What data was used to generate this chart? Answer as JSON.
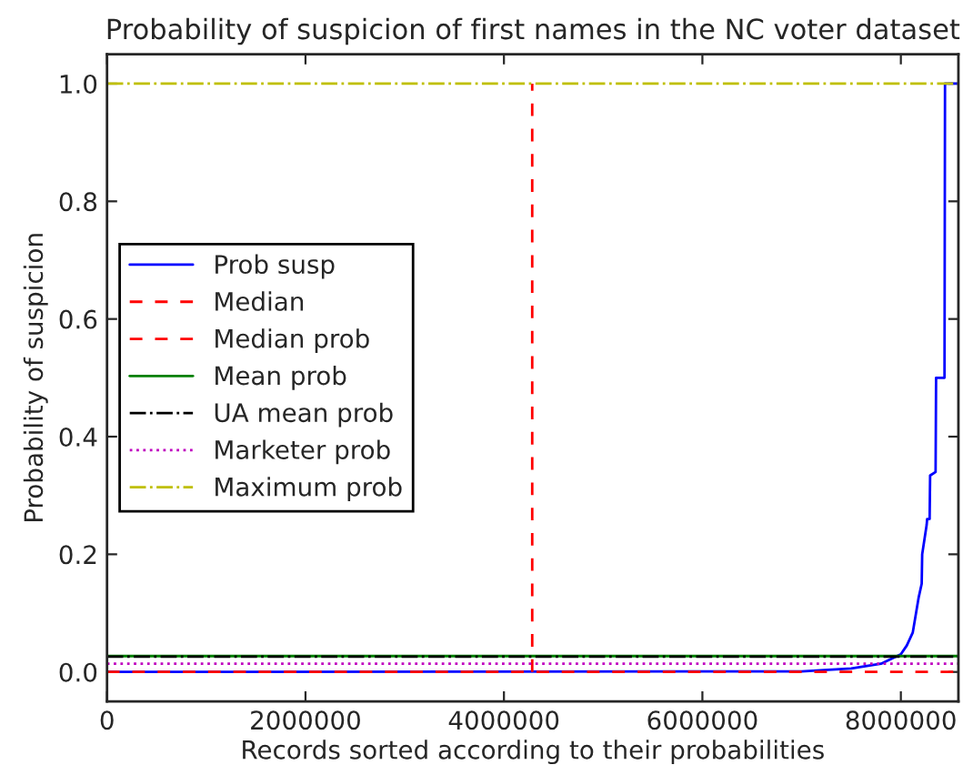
{
  "chart_data": {
    "type": "line",
    "title": "Probability of suspicion of first names in the NC voter dataset",
    "xlabel": "Records sorted according to their probabilities",
    "ylabel": "Probability of suspicion",
    "xlim": [
      0,
      8580000
    ],
    "ylim": [
      -0.05,
      1.05
    ],
    "xticks": [
      0,
      2000000,
      4000000,
      6000000,
      8000000
    ],
    "yticks": [
      {
        "value": 0,
        "label": "0.0"
      },
      {
        "value": 0.2,
        "label": "0.2"
      },
      {
        "value": 0.4,
        "label": "0.4"
      },
      {
        "value": 0.6,
        "label": "0.6"
      },
      {
        "value": 0.8,
        "label": "0.8"
      },
      {
        "value": 1,
        "label": "1.0"
      }
    ],
    "legend": "left",
    "grid": false,
    "series": [
      {
        "name": "Prob susp",
        "color": "#0000ff",
        "line_style": "solid",
        "x": [
          0,
          7000000,
          7500000,
          7800000,
          8000000,
          8060000,
          8120000,
          8180000,
          8210000,
          8215000,
          8260000,
          8265000,
          8290000,
          8295000,
          8350000,
          8355000,
          8440000,
          8445000,
          8580000
        ],
        "values": [
          0,
          0.001,
          0.006,
          0.014,
          0.03,
          0.045,
          0.067,
          0.127,
          0.15,
          0.2,
          0.25,
          0.26,
          0.26,
          0.334,
          0.34,
          0.5,
          0.5,
          1,
          1
        ]
      },
      {
        "name": "Median",
        "color": "#ff0000",
        "line_style": "dashed",
        "x": [
          4285000,
          4285000
        ],
        "values": [
          0,
          1
        ]
      },
      {
        "name": "Median prob",
        "color": "#ff0000",
        "line_style": "dashed",
        "x": [
          0,
          8580000
        ],
        "values": [
          0,
          0
        ]
      },
      {
        "name": "Mean prob",
        "color": "#008000",
        "line_style": "solid",
        "x": [
          0,
          8580000
        ],
        "values": [
          0.027,
          0.027
        ]
      },
      {
        "name": "UA mean prob",
        "color": "#000000",
        "line_style": "dashdot",
        "x": [
          0,
          8580000
        ],
        "values": [
          0.026,
          0.026
        ]
      },
      {
        "name": "Marketer prob",
        "color": "#bf00bf",
        "line_style": "dotted",
        "x": [
          0,
          8580000
        ],
        "values": [
          0.014,
          0.014
        ]
      },
      {
        "name": "Maximum prob",
        "color": "#bfbf00",
        "line_style": "dashdot",
        "x": [
          0,
          8580000
        ],
        "values": [
          1,
          1
        ]
      }
    ]
  }
}
